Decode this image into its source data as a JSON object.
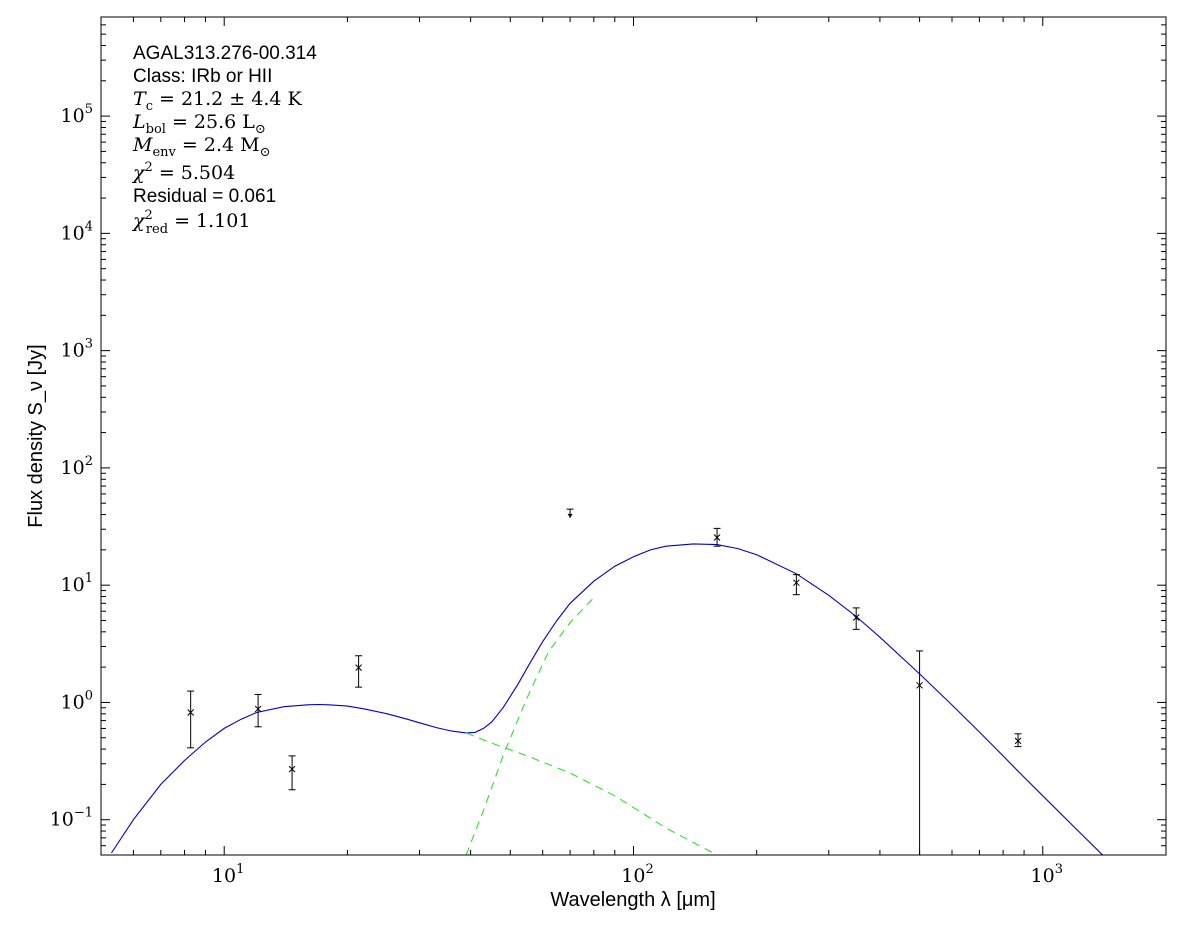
{
  "chart_data": {
    "type": "scatter",
    "title": "",
    "xlabel": "Wavelength λ [μm]",
    "ylabel": "Flux density S_ν [Jy]",
    "xscale": "log",
    "yscale": "log",
    "xlim": [
      5,
      2000
    ],
    "ylim": [
      0.05,
      700000
    ],
    "grid": false,
    "x_tick_labels": [
      "10^1",
      "10^2",
      "10^3"
    ],
    "y_tick_labels": [
      "10^-1",
      "10^0",
      "10^1",
      "10^2",
      "10^3",
      "10^4",
      "10^5"
    ],
    "annotations": [
      "AGAL313.276-00.314",
      "Class: IRb or HII",
      "T_c = 21.2 ± 4.4 K",
      "L_bol = 25.6 L_⊙",
      "M_env = 2.4 M_⊙",
      "χ² = 5.504",
      "Residual = 0.061",
      "χ²_red = 1.101"
    ],
    "series": [
      {
        "kind": "measurements",
        "color": "#000000",
        "points": [
          {
            "x": 8.28,
            "y": 0.82,
            "err_low": 0.41,
            "err_high": 1.25
          },
          {
            "x": 12.1,
            "y": 0.88,
            "err_low": 0.62,
            "err_high": 1.17
          },
          {
            "x": 14.65,
            "y": 0.27,
            "err_low": 0.18,
            "err_high": 0.35
          },
          {
            "x": 21.3,
            "y": 1.98,
            "err_low": 1.35,
            "err_high": 2.5
          },
          {
            "x": 160,
            "y": 25.5,
            "err_low": 21.5,
            "err_high": 30.5
          },
          {
            "x": 250,
            "y": 10.5,
            "err_low": 8.3,
            "err_high": 12.3
          },
          {
            "x": 350,
            "y": 5.3,
            "err_low": 4.2,
            "err_high": 6.4
          },
          {
            "x": 500,
            "y": 1.4,
            "err_low": 0.05,
            "err_high": 2.75
          },
          {
            "x": 870,
            "y": 0.47,
            "err_low": 0.42,
            "err_high": 0.54
          }
        ],
        "upper_limits": [
          {
            "x": 70,
            "y": 44.5,
            "y_bottom": 37.5
          }
        ]
      },
      {
        "kind": "total_fit",
        "color": "#0000cc",
        "line": "solid",
        "x": [
          5.3,
          6,
          7,
          8,
          9,
          10,
          11,
          12,
          14,
          16,
          17,
          18,
          20,
          22,
          25,
          28,
          30,
          33,
          36,
          39,
          41,
          43,
          45,
          48,
          52,
          56,
          60,
          65,
          70,
          80,
          90,
          100,
          110,
          120,
          140,
          160,
          180,
          200,
          250,
          300,
          350,
          400,
          500,
          600,
          700,
          800,
          900,
          1000,
          1200,
          1400,
          1600
        ],
        "y": [
          0.052,
          0.1,
          0.2,
          0.32,
          0.46,
          0.6,
          0.72,
          0.82,
          0.92,
          0.955,
          0.96,
          0.955,
          0.93,
          0.88,
          0.8,
          0.72,
          0.67,
          0.61,
          0.57,
          0.55,
          0.555,
          0.6,
          0.68,
          0.9,
          1.4,
          2.2,
          3.3,
          5.0,
          7.0,
          10.8,
          14.5,
          17.5,
          20.0,
          21.5,
          22.5,
          22.2,
          20.5,
          18.2,
          12.5,
          8.2,
          5.4,
          3.6,
          1.75,
          0.95,
          0.56,
          0.35,
          0.23,
          0.16,
          0.085,
          0.05,
          0.03
        ]
      },
      {
        "kind": "warm_component",
        "color": "#33dd33",
        "line": "dashed",
        "x": [
          39,
          45,
          55,
          70,
          90,
          120,
          160
        ],
        "y": [
          0.55,
          0.45,
          0.35,
          0.25,
          0.16,
          0.085,
          0.05
        ]
      },
      {
        "kind": "cold_component",
        "color": "#33dd33",
        "line": "dashed",
        "x": [
          39,
          43,
          48,
          55,
          62,
          70,
          80
        ],
        "y": [
          0.05,
          0.12,
          0.35,
          1.1,
          2.7,
          4.8,
          7.8
        ]
      }
    ]
  }
}
